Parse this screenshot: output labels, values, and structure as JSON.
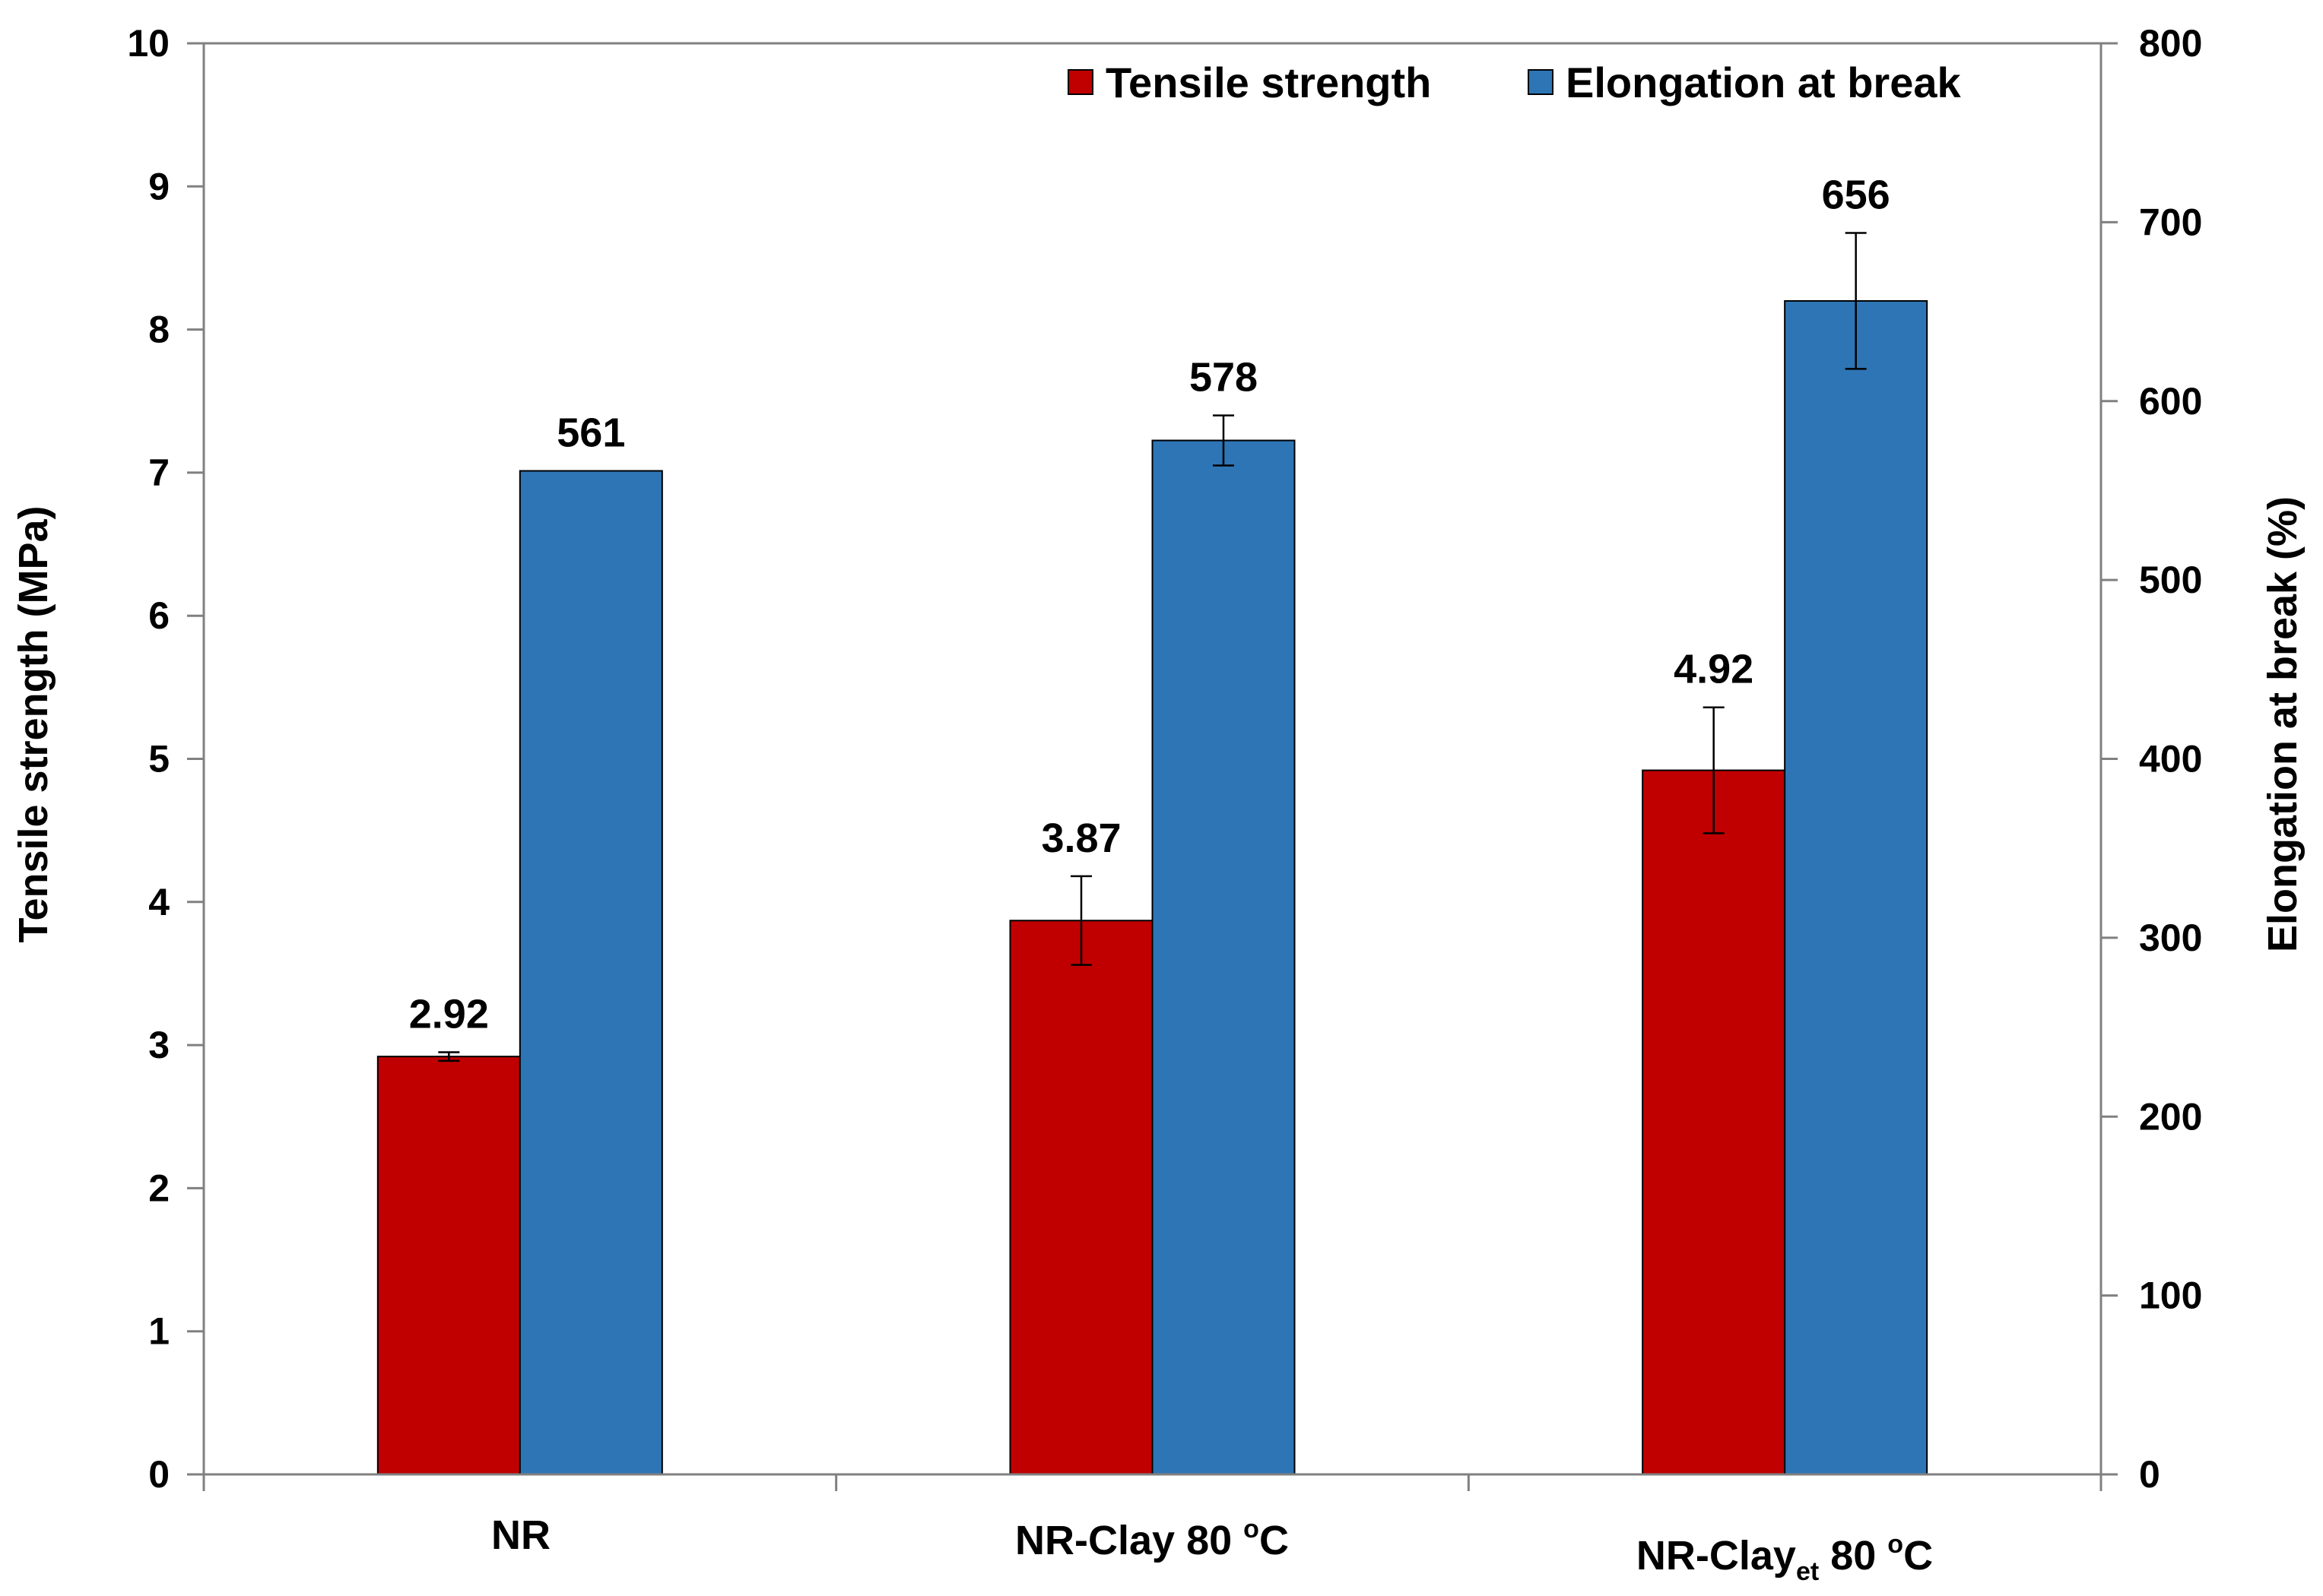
{
  "chart_data": {
    "type": "bar",
    "categories": [
      {
        "main": "NR",
        "sub": "",
        "tail": "",
        "sup": ""
      },
      {
        "main": "NR-Clay 80 ",
        "sub": "",
        "tail": "",
        "sup": "o",
        "unit": "C"
      },
      {
        "main": "NR-Clay",
        "sub": "et",
        "tail": " 80 ",
        "sup": "o",
        "unit": "C"
      }
    ],
    "series": [
      {
        "name": "Tensile strength",
        "axis": "left",
        "color": "#C00000",
        "values": [
          2.92,
          3.87,
          4.92
        ],
        "errors": [
          0.03,
          0.31,
          0.44
        ],
        "labels": [
          "2.92",
          "3.87",
          "4.92"
        ]
      },
      {
        "name": "Elongation at break",
        "axis": "right",
        "color": "#2E75B6",
        "values": [
          561,
          578,
          656
        ],
        "errors": [
          0,
          14,
          38
        ],
        "labels": [
          "561",
          "578",
          "656"
        ]
      }
    ],
    "y_left": {
      "label": "Tensile strength (MPa)",
      "min": 0,
      "max": 10,
      "step": 1,
      "ticks": [
        "0",
        "1",
        "2",
        "3",
        "4",
        "5",
        "6",
        "7",
        "8",
        "9",
        "10"
      ]
    },
    "y_right": {
      "label": "Elongation at break (%)",
      "min": 0,
      "max": 800,
      "step": 100,
      "ticks": [
        "0",
        "100",
        "200",
        "300",
        "400",
        "500",
        "600",
        "700",
        "800"
      ]
    },
    "legend_position": "top-right"
  }
}
